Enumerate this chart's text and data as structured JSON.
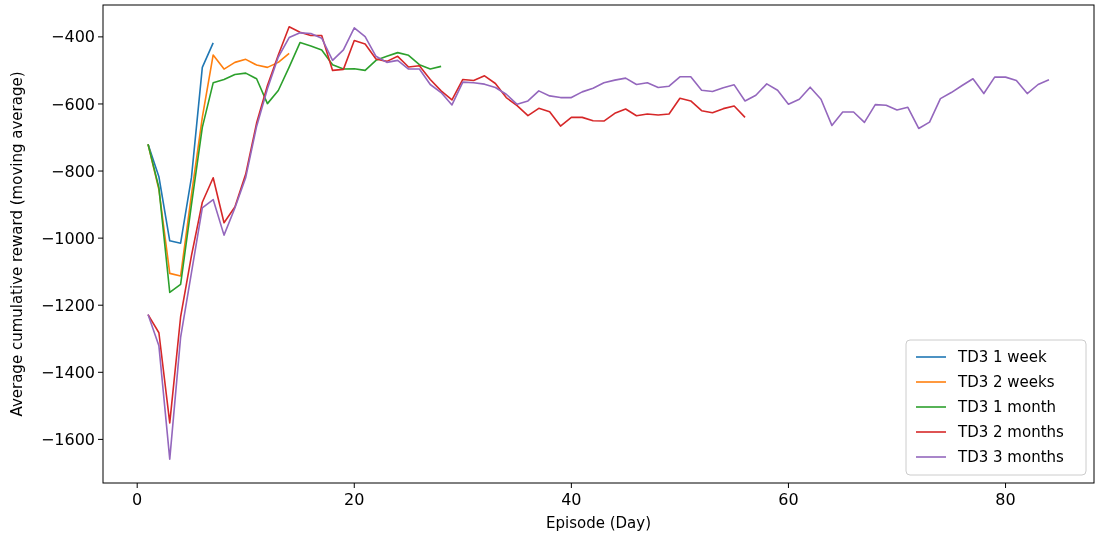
{
  "chart_data": {
    "type": "line",
    "xlabel": "Episode (Day)",
    "ylabel": "Average cumulative reward (moving average)",
    "xlim": [
      -3.15,
      88.15
    ],
    "ylim": [
      -1730,
      -305
    ],
    "xticks": [
      0,
      20,
      40,
      60,
      80
    ],
    "yticks": [
      -1600,
      -1400,
      -1200,
      -1000,
      -800,
      -600,
      -400
    ],
    "legend": "bottom right",
    "grid": false,
    "x": [
      1,
      2,
      3,
      4,
      5,
      6,
      7,
      8,
      9,
      10,
      11,
      12,
      13,
      14,
      15,
      16,
      17,
      18,
      19,
      20,
      21,
      22,
      23,
      24,
      25,
      26,
      27,
      28,
      29,
      30,
      31,
      32,
      33,
      34,
      35,
      36,
      37,
      38,
      39,
      40,
      41,
      42,
      43,
      44,
      45,
      46,
      47,
      48,
      49,
      50,
      51,
      52,
      53,
      54,
      55,
      56,
      57,
      58,
      59,
      60,
      61,
      62,
      63,
      64,
      65,
      66,
      67,
      68,
      69,
      70,
      71,
      72,
      73,
      74,
      75,
      76,
      77,
      78,
      79,
      80,
      81,
      82,
      83,
      84
    ],
    "series": [
      {
        "name": "TD3 1 week",
        "color": "#1f77b4",
        "x": [
          1,
          2,
          3,
          4,
          5,
          6,
          7
        ],
        "values": [
          -720,
          -817,
          -1008,
          -1015,
          -819,
          -491,
          -418
        ]
      },
      {
        "name": "TD3 2 weeks",
        "color": "#ff7f0e",
        "x": [
          1,
          2,
          3,
          4,
          5,
          6,
          7,
          8,
          9,
          10,
          11,
          12,
          13,
          14
        ],
        "values": [
          -720,
          -855,
          -1105,
          -1113,
          -870,
          -640,
          -454,
          -496,
          -476,
          -467,
          -484,
          -491,
          -476,
          -449
        ]
      },
      {
        "name": "TD3 1 month",
        "color": "#2ca02c",
        "x": [
          1,
          2,
          3,
          4,
          5,
          6,
          7,
          8,
          9,
          10,
          11,
          12,
          13,
          14,
          15,
          16,
          17,
          18,
          19,
          20,
          21,
          22,
          23,
          24,
          25,
          26,
          27,
          28
        ],
        "values": [
          -720,
          -850,
          -1162,
          -1138,
          -900,
          -670,
          -537,
          -527,
          -512,
          -508,
          -525,
          -599,
          -560,
          -490,
          -417,
          -427,
          -439,
          -483,
          -496,
          -495,
          -500,
          -470,
          -458,
          -447,
          -455,
          -483,
          -496,
          -488
        ]
      },
      {
        "name": "TD3 2 months",
        "color": "#d62728",
        "x": [
          1,
          2,
          3,
          4,
          5,
          6,
          7,
          8,
          9,
          10,
          11,
          12,
          13,
          14,
          15,
          16,
          17,
          18,
          19,
          20,
          21,
          22,
          23,
          24,
          25,
          26,
          27,
          28,
          29,
          30,
          31,
          32,
          33,
          34,
          35,
          36,
          37,
          38,
          39,
          40,
          41,
          42,
          43,
          44,
          45,
          46,
          47,
          48,
          49,
          50,
          51,
          52,
          53,
          54,
          55,
          56
        ],
        "values": [
          -1228,
          -1282,
          -1551,
          -1235,
          -1052,
          -893,
          -820,
          -954,
          -907,
          -809,
          -657,
          -545,
          -454,
          -370,
          -386,
          -396,
          -396,
          -500,
          -497,
          -411,
          -421,
          -466,
          -473,
          -458,
          -490,
          -486,
          -527,
          -561,
          -588,
          -527,
          -530,
          -516,
          -539,
          -581,
          -605,
          -635,
          -613,
          -623,
          -666,
          -640,
          -640,
          -650,
          -651,
          -628,
          -615,
          -635,
          -630,
          -633,
          -630,
          -583,
          -591,
          -620,
          -626,
          -614,
          -606,
          -640
        ]
      },
      {
        "name": "TD3 3 months",
        "color": "#9467bd",
        "values": [
          -1228,
          -1321,
          -1659,
          -1296,
          -1103,
          -910,
          -885,
          -991,
          -910,
          -819,
          -667,
          -555,
          -460,
          -402,
          -388,
          -390,
          -404,
          -470,
          -439,
          -373,
          -399,
          -458,
          -476,
          -470,
          -496,
          -496,
          -542,
          -566,
          -603,
          -535,
          -537,
          -541,
          -551,
          -571,
          -601,
          -591,
          -561,
          -576,
          -581,
          -581,
          -564,
          -553,
          -537,
          -529,
          -523,
          -542,
          -537,
          -551,
          -547,
          -519,
          -519,
          -559,
          -563,
          -552,
          -543,
          -591,
          -574,
          -540,
          -559,
          -601,
          -586,
          -550,
          -586,
          -664,
          -624,
          -624,
          -655,
          -602,
          -604,
          -618,
          -610,
          -673,
          -654,
          -584,
          -566,
          -545,
          -525,
          -569,
          -520,
          -520,
          -530,
          -569,
          -542,
          -528
        ]
      }
    ]
  }
}
